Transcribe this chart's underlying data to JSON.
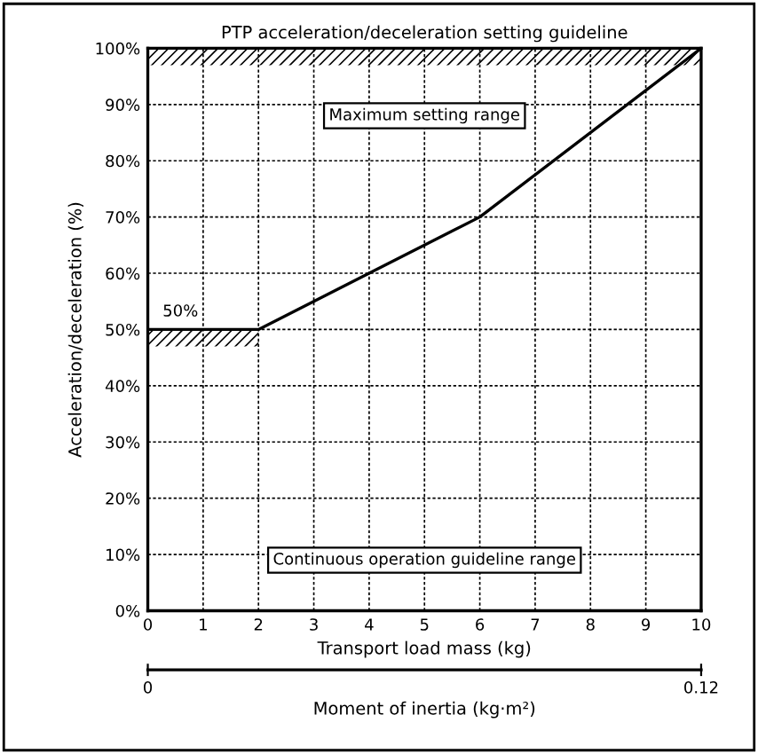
{
  "chart_data": {
    "type": "line",
    "title": "PTP acceleration/deceleration setting guideline",
    "xlabel": "Transport load mass (kg)",
    "ylabel": "Acceleration/deceleration (%)",
    "x2label": "Moment of inertia (kg·m²)",
    "x": [
      0,
      2,
      4,
      6,
      10
    ],
    "series": [
      {
        "color": "#000000",
        "values": [
          50,
          50,
          60,
          70,
          100
        ]
      }
    ],
    "xlim": [
      0,
      10
    ],
    "xticks": [
      0,
      1,
      2,
      3,
      4,
      5,
      6,
      7,
      8,
      9,
      10
    ],
    "ylim": [
      0,
      100
    ],
    "yticks": [
      {
        "value": 0,
        "label": "0%"
      },
      {
        "value": 10,
        "label": "10%"
      },
      {
        "value": 20,
        "label": "20%"
      },
      {
        "value": 30,
        "label": "30%"
      },
      {
        "value": 40,
        "label": "40%"
      },
      {
        "value": 50,
        "label": "50%"
      },
      {
        "value": 60,
        "label": "60%"
      },
      {
        "value": 70,
        "label": "70%"
      },
      {
        "value": 80,
        "label": "80%"
      },
      {
        "value": 90,
        "label": "90%"
      },
      {
        "value": 100,
        "label": "100%"
      }
    ],
    "x2lim": [
      0,
      0.12
    ],
    "x2ticks": [
      0,
      0.12
    ],
    "bands": [
      {
        "axis": "y",
        "from": 97,
        "to": 100,
        "label": "Maximum setting range",
        "color": "#000000"
      }
    ],
    "annotations": [
      {
        "text": "50%",
        "x": 0,
        "y": 50
      },
      "Continuous operation guideline range"
    ],
    "grid": true,
    "line_style": "solid",
    "marker": "none"
  }
}
